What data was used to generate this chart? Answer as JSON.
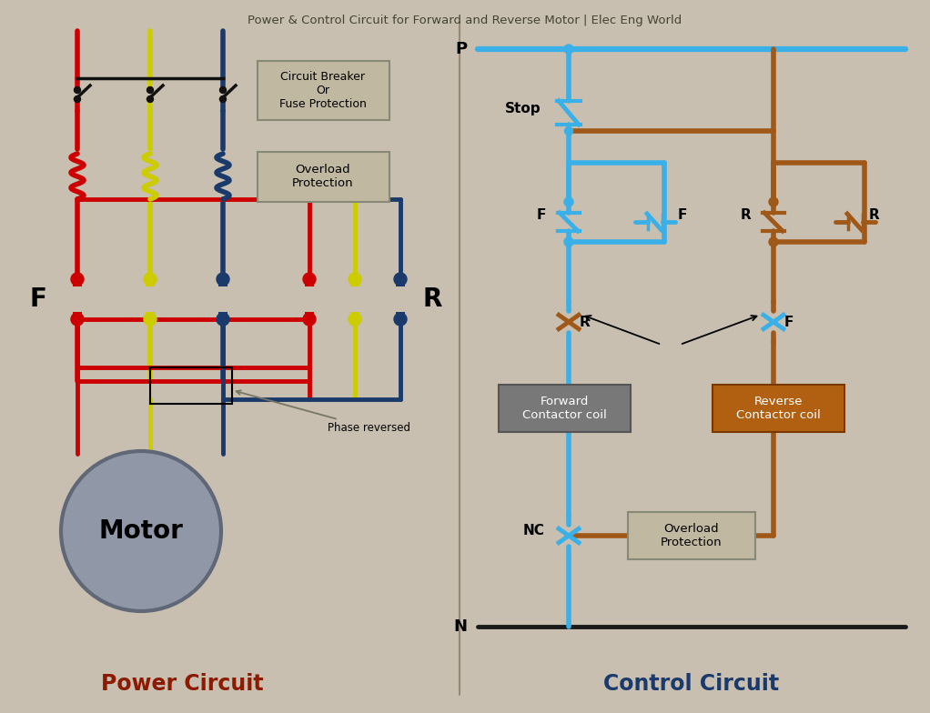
{
  "bg_color": "#c8bfb0",
  "title": "Power & Control Circuit for Forward and Reverse Motor | Elec Eng World",
  "power_title": "Power Circuit",
  "control_title": "Control Circuit",
  "colors": {
    "red": "#cc0000",
    "yellow": "#cccc00",
    "blue": "#1a3a6b",
    "light_blue": "#3ab0e8",
    "brown": "#a05818",
    "dark": "#111111",
    "box_bg": "#c0b8a0",
    "box_border": "#888877",
    "motor_gray": "#8890a0",
    "fwd_box_bg": "#787878",
    "rev_box_bg": "#b06010",
    "N_line": "#1a1a1a"
  },
  "layout": {
    "figw": 10.22,
    "figh": 7.84,
    "dpi": 100
  }
}
